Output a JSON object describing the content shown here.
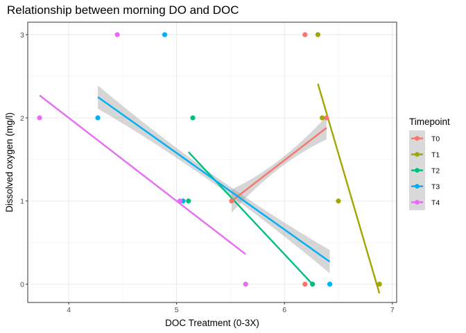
{
  "chart_data": {
    "type": "scatter",
    "title": "Relationship between morning DO and DOC",
    "xlabel": "DOC Treatment (0-3X)",
    "ylabel": "Dissolved oxygen (mg/l)",
    "xlim": [
      3.62,
      7.04
    ],
    "ylim": [
      -0.22,
      3.15
    ],
    "xticks": [
      4,
      5,
      6,
      7
    ],
    "yticks": [
      0,
      1,
      2,
      3
    ],
    "grid": true,
    "legend_title": "Timepoint",
    "legend_position": "right",
    "series": [
      {
        "name": "T0",
        "color": "#F8766D",
        "points": [
          [
            6.19,
            3
          ],
          [
            6.39,
            2
          ],
          [
            5.51,
            1
          ],
          [
            6.19,
            0
          ]
        ],
        "fit": [
          [
            5.51,
            1.0
          ],
          [
            6.39,
            1.88
          ]
        ],
        "band": true
      },
      {
        "name": "T1",
        "color": "#A3A500",
        "points": [
          [
            6.31,
            3
          ],
          [
            6.35,
            2
          ],
          [
            6.5,
            1
          ],
          [
            6.88,
            0
          ]
        ],
        "fit": [
          [
            6.31,
            2.41
          ],
          [
            6.88,
            -0.11
          ]
        ],
        "band": false
      },
      {
        "name": "T2",
        "color": "#00BF7D",
        "points": [
          [
            5.15,
            2
          ],
          [
            5.11,
            1
          ],
          [
            6.26,
            0
          ]
        ],
        "fit": [
          [
            5.11,
            1.59
          ],
          [
            6.26,
            0.0
          ]
        ],
        "band": false
      },
      {
        "name": "T3",
        "color": "#00B0F6",
        "points": [
          [
            4.89,
            3
          ],
          [
            4.27,
            2
          ],
          [
            5.06,
            1
          ],
          [
            6.42,
            0
          ]
        ],
        "fit": [
          [
            4.27,
            2.25
          ],
          [
            6.42,
            0.27
          ]
        ],
        "band": true
      },
      {
        "name": "T4",
        "color": "#E76BF3",
        "points": [
          [
            4.45,
            3
          ],
          [
            3.73,
            2
          ],
          [
            5.03,
            1
          ],
          [
            5.64,
            0
          ]
        ],
        "fit": [
          [
            3.73,
            2.27
          ],
          [
            5.64,
            0.36
          ]
        ],
        "band": false
      }
    ]
  }
}
